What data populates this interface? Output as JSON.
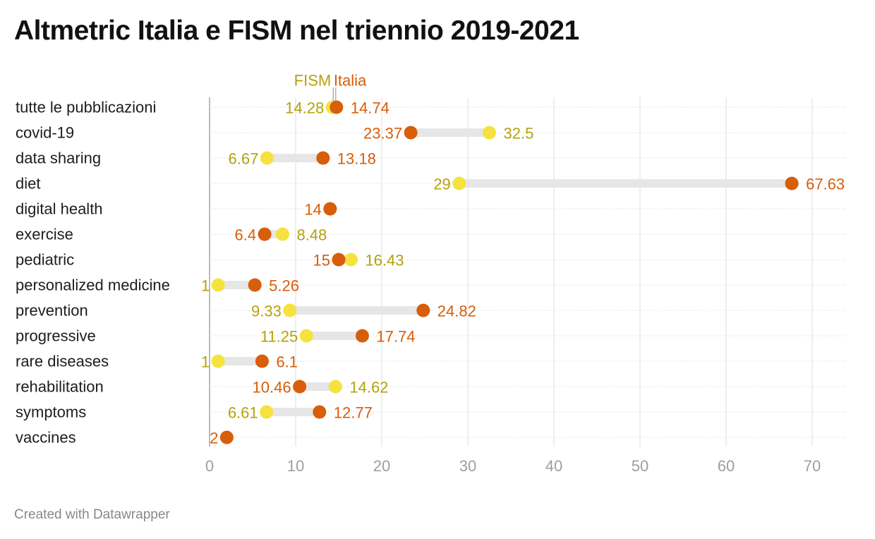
{
  "title": "Altmetric Italia e FISM nel triennio 2019-2021",
  "footer": "Created with Datawrapper",
  "colors": {
    "fism": "#f5e23f",
    "fism_text": "#b3a20c",
    "italia": "#d75e0a",
    "italia_text": "#d75e0a",
    "range_bar": "#e6e6e6",
    "grid": "#dddddd",
    "axis_line": "#bbbbbb",
    "tick_text": "#9e9e9e"
  },
  "chart_data": {
    "type": "dot-range",
    "title": "Altmetric Italia e FISM nel triennio 2019-2021",
    "xlim": [
      0,
      72
    ],
    "x_ticks": [
      0,
      10,
      20,
      30,
      40,
      50,
      60,
      70
    ],
    "x_tick_labels": [
      "0",
      "10",
      "20",
      "30",
      "40",
      "50",
      "60",
      "70"
    ],
    "grid": true,
    "legend": {
      "placement": "top",
      "entries": [
        "FISM",
        "Italia"
      ]
    },
    "series": [
      {
        "name": "FISM",
        "key": "fism"
      },
      {
        "name": "Italia",
        "key": "italia"
      }
    ],
    "categories": [
      "tutte le pubblicazioni",
      "covid-19",
      "data sharing",
      "diet",
      "digital health",
      "exercise",
      "pediatric",
      "personalized medicine",
      "prevention",
      "progressive",
      "rare diseases",
      "rehabilitation",
      "symptoms",
      "vaccines"
    ],
    "rows": [
      {
        "category": "tutte le pubblicazioni",
        "fism": 14.28,
        "fism_label": "14.28",
        "italia": 14.74,
        "italia_label": "14.74"
      },
      {
        "category": "covid-19",
        "fism": 32.5,
        "fism_label": "32.5",
        "italia": 23.37,
        "italia_label": "23.37"
      },
      {
        "category": "data sharing",
        "fism": 6.67,
        "fism_label": "6.67",
        "italia": 13.18,
        "italia_label": "13.18"
      },
      {
        "category": "diet",
        "fism": 29,
        "fism_label": "29",
        "italia": 67.63,
        "italia_label": "67.63"
      },
      {
        "category": "digital health",
        "fism": null,
        "fism_label": "",
        "italia": 14,
        "italia_label": "14"
      },
      {
        "category": "exercise",
        "fism": 8.48,
        "fism_label": "8.48",
        "italia": 6.4,
        "italia_label": "6.4"
      },
      {
        "category": "pediatric",
        "fism": 16.43,
        "fism_label": "16.43",
        "italia": 15,
        "italia_label": "15"
      },
      {
        "category": "personalized medicine",
        "fism": 1,
        "fism_label": "1",
        "italia": 5.26,
        "italia_label": "5.26"
      },
      {
        "category": "prevention",
        "fism": 9.33,
        "fism_label": "9.33",
        "italia": 24.82,
        "italia_label": "24.82"
      },
      {
        "category": "progressive",
        "fism": 11.25,
        "fism_label": "11.25",
        "italia": 17.74,
        "italia_label": "17.74"
      },
      {
        "category": "rare diseases",
        "fism": 1,
        "fism_label": "1",
        "italia": 6.1,
        "italia_label": "6.1"
      },
      {
        "category": "rehabilitation",
        "fism": 14.62,
        "fism_label": "14.62",
        "italia": 10.46,
        "italia_label": "10.46"
      },
      {
        "category": "symptoms",
        "fism": 6.61,
        "fism_label": "6.61",
        "italia": 12.77,
        "italia_label": "12.77"
      },
      {
        "category": "vaccines",
        "fism": null,
        "fism_label": "",
        "italia": 2,
        "italia_label": "2"
      }
    ]
  }
}
